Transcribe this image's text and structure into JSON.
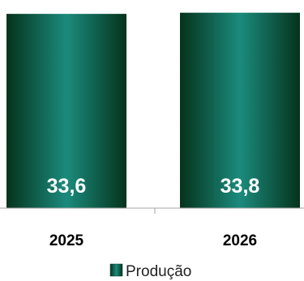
{
  "chart_data": {
    "type": "bar",
    "categories": [
      "2025",
      "2026"
    ],
    "series": [
      {
        "name": "Produção",
        "values": [
          33.6,
          33.8
        ]
      }
    ],
    "data_labels": [
      "33,6",
      "33,8"
    ],
    "title": "",
    "xlabel": "",
    "ylabel": "",
    "ylim": [
      0,
      36
    ],
    "grid": false,
    "legend": "bottom",
    "colors": {
      "bar_edge": "#0b3d26",
      "bar_center": "#1a8a7a",
      "bar_dark": "#063a1f",
      "axis": "#a6a6a6"
    }
  }
}
